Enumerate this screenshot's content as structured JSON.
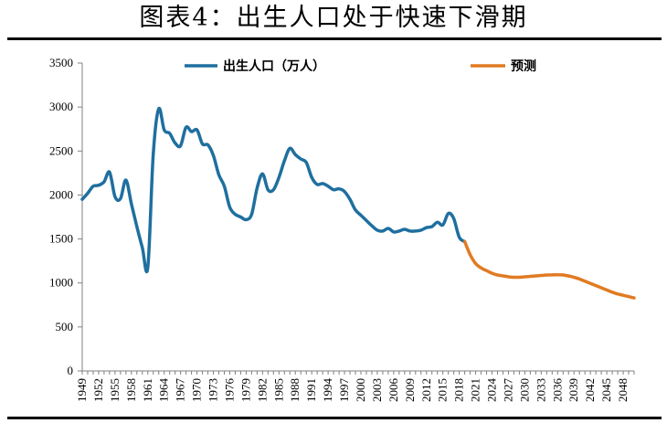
{
  "title": "图表4：出生人口处于快速下滑期",
  "chart_data": {
    "type": "line",
    "title": "图表4：出生人口处于快速下滑期",
    "xlabel": "",
    "ylabel": "",
    "ylim": [
      0,
      3500
    ],
    "yticks": [
      0,
      500,
      1000,
      1500,
      2000,
      2500,
      3000,
      3500
    ],
    "xlim": [
      1949,
      2050
    ],
    "xtick_labels": [
      "1949",
      "1952",
      "1955",
      "1958",
      "1961",
      "1964",
      "1967",
      "1970",
      "1973",
      "1976",
      "1979",
      "1982",
      "1985",
      "1988",
      "1991",
      "1994",
      "1997",
      "2000",
      "2003",
      "2006",
      "2009",
      "2012",
      "2015",
      "2018",
      "2021",
      "2024",
      "2027",
      "2030",
      "2033",
      "2036",
      "2039",
      "2042",
      "2045",
      "2048"
    ],
    "legend_position": "top",
    "series": [
      {
        "name": "出生人口（万人）",
        "color": "#1f6f9f",
        "x": [
          1949,
          1950,
          1951,
          1952,
          1953,
          1954,
          1955,
          1956,
          1957,
          1958,
          1959,
          1960,
          1961,
          1962,
          1963,
          1964,
          1965,
          1966,
          1967,
          1968,
          1969,
          1970,
          1971,
          1972,
          1973,
          1974,
          1975,
          1976,
          1977,
          1978,
          1979,
          1980,
          1981,
          1982,
          1983,
          1984,
          1985,
          1986,
          1987,
          1988,
          1989,
          1990,
          1991,
          1992,
          1993,
          1994,
          1995,
          1996,
          1997,
          1998,
          1999,
          2000,
          2001,
          2002,
          2003,
          2004,
          2005,
          2006,
          2007,
          2008,
          2009,
          2010,
          2011,
          2012,
          2013,
          2014,
          2015,
          2016,
          2017,
          2018,
          2019
        ],
        "values": [
          1950,
          2020,
          2100,
          2110,
          2150,
          2260,
          1980,
          1960,
          2170,
          1900,
          1640,
          1400,
          1180,
          2460,
          2980,
          2740,
          2700,
          2590,
          2560,
          2770,
          2720,
          2740,
          2580,
          2570,
          2450,
          2230,
          2100,
          1860,
          1780,
          1750,
          1720,
          1780,
          2080,
          2240,
          2060,
          2060,
          2200,
          2390,
          2530,
          2460,
          2410,
          2370,
          2200,
          2120,
          2130,
          2100,
          2060,
          2070,
          2040,
          1950,
          1830,
          1770,
          1710,
          1650,
          1600,
          1590,
          1620,
          1580,
          1590,
          1610,
          1590,
          1590,
          1600,
          1630,
          1640,
          1690,
          1660,
          1790,
          1730,
          1520,
          1470
        ]
      },
      {
        "name": "预测",
        "color": "#e07b22",
        "x": [
          2019,
          2020,
          2021,
          2022,
          2023,
          2024,
          2025,
          2026,
          2027,
          2028,
          2029,
          2030,
          2031,
          2032,
          2033,
          2034,
          2035,
          2036,
          2037,
          2038,
          2039,
          2040,
          2041,
          2042,
          2043,
          2044,
          2045,
          2046,
          2047,
          2048,
          2049,
          2050
        ],
        "values": [
          1470,
          1320,
          1220,
          1170,
          1140,
          1110,
          1090,
          1080,
          1070,
          1065,
          1065,
          1070,
          1075,
          1080,
          1085,
          1090,
          1092,
          1093,
          1090,
          1080,
          1065,
          1045,
          1020,
          995,
          970,
          945,
          920,
          895,
          875,
          860,
          845,
          830
        ]
      }
    ]
  }
}
